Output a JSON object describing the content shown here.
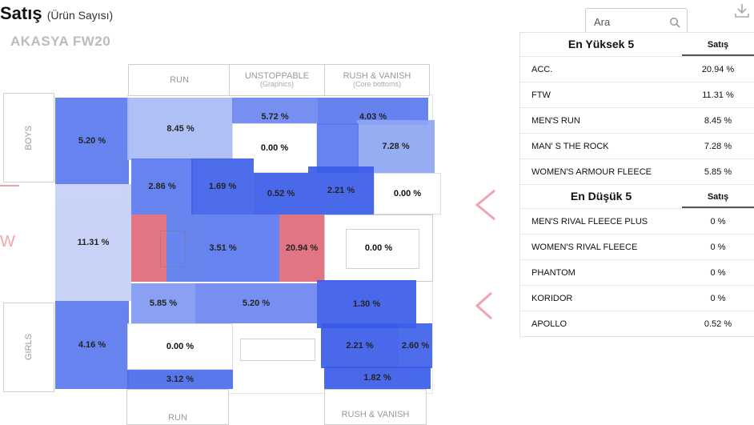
{
  "header": {
    "title": "Satış",
    "title_suffix": "(Ürün Sayısı)",
    "store": "AKASYA FW20"
  },
  "search": {
    "placeholder": "Ara"
  },
  "floor": {
    "labels": {
      "run_top": "RUN",
      "unstoppable": "UNSTOPPABLE",
      "unstoppable_sub": "(Graphics)",
      "rush_top": "RUSH & VANISH",
      "rush_sub": "(Core bottoms)",
      "boys": "BOYS",
      "girls": "GIRLS",
      "run_bottom": "RUN",
      "rush_bottom": "RUSH & VANISH"
    },
    "zones": [
      {
        "id": "boys-zone",
        "value": "5.20 %",
        "color": "#5b79ee"
      },
      {
        "id": "mens-run-zone",
        "value": "8.45 %",
        "color": "#a9bbf5"
      },
      {
        "id": "graphics-zone",
        "value": "5.72 %",
        "color": "#6b86f0"
      },
      {
        "id": "core-bottoms-zone",
        "value": "4.03 %",
        "color": "#5a78ee"
      },
      {
        "id": "empty-zone-1",
        "value": "0.00 %",
        "color": "#ffffff"
      },
      {
        "id": "the-rock-zone",
        "value": "7.28 %",
        "color": "#8ea6f3"
      },
      {
        "id": "zone-286",
        "value": "2.86 %",
        "color": "#5b79ee"
      },
      {
        "id": "zone-169",
        "value": "1.69 %",
        "color": "#3f61ea"
      },
      {
        "id": "zone-052",
        "value": "0.52 %",
        "color": "#3a5ce9"
      },
      {
        "id": "zone-221a",
        "value": "2.21 %",
        "color": "#3a5ce9"
      },
      {
        "id": "empty-zone-2",
        "value": "0.00 %",
        "color": "#ffffff"
      },
      {
        "id": "fleece-zone",
        "value": "11.31 %",
        "color": "#c5d0f7"
      },
      {
        "id": "acc-zone",
        "value": "",
        "color": "#e06a7a"
      },
      {
        "id": "zone-351",
        "value": "3.51 %",
        "color": "#5b79ee"
      },
      {
        "id": "acc-max-zone",
        "value": "20.94 %",
        "color": "#e06a7a"
      },
      {
        "id": "phantom-zone",
        "value": "0.00 %",
        "color": "#ffffff"
      },
      {
        "id": "girls-zone",
        "value": "4.16 %",
        "color": "#5b79ee"
      },
      {
        "id": "zone-585",
        "value": "5.85 %",
        "color": "#7f98f2"
      },
      {
        "id": "zone-520b",
        "value": "5.20 %",
        "color": "#6b86f0"
      },
      {
        "id": "zone-130",
        "value": "1.30 %",
        "color": "#3a5ce9"
      },
      {
        "id": "empty-zone-3",
        "value": "0.00 %",
        "color": "#ffffff"
      },
      {
        "id": "zone-221b",
        "value": "2.21 %",
        "color": "#3a5ce9"
      },
      {
        "id": "zone-260",
        "value": "2.60 %",
        "color": "#3f61ea"
      },
      {
        "id": "zone-312",
        "value": "3.12 %",
        "color": "#4b6cec"
      },
      {
        "id": "zone-182",
        "value": "1.82 %",
        "color": "#3a5ce9"
      }
    ]
  },
  "top5": {
    "title": "En Yüksek 5",
    "column": "Satış",
    "rows": [
      {
        "name": "ACC.",
        "value": "20.94 %"
      },
      {
        "name": "FTW",
        "value": "11.31 %"
      },
      {
        "name": "MEN'S RUN",
        "value": "8.45 %"
      },
      {
        "name": "MAN' S THE ROCK",
        "value": "7.28 %"
      },
      {
        "name": "WOMEN'S ARMOUR FLEECE",
        "value": "5.85 %"
      }
    ]
  },
  "bottom5": {
    "title": "En Düşük 5",
    "column": "Satış",
    "rows": [
      {
        "name": "MEN'S RIVAL FLEECE PLUS",
        "value": "0 %"
      },
      {
        "name": "WOMEN'S RIVAL FLEECE",
        "value": "0 %"
      },
      {
        "name": "PHANTOM",
        "value": "0 %"
      },
      {
        "name": "KORIDOR",
        "value": "0 %"
      },
      {
        "name": "APOLLO",
        "value": "0.52 %"
      }
    ]
  },
  "colors": {
    "accent_high": "#e06a7a",
    "accent_blue": "#3a5ce9",
    "arrow": "#f2a4ac"
  },
  "icons": {
    "download": "download-icon",
    "search": "search-icon"
  }
}
